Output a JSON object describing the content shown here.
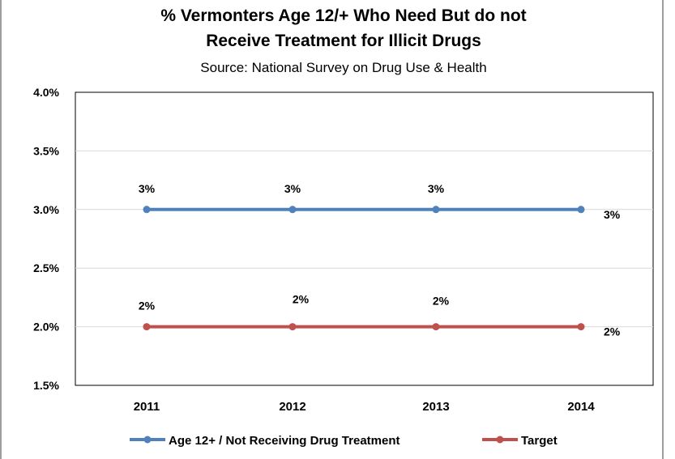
{
  "chart_data": {
    "type": "line",
    "title_line1": "% Vermonters Age 12/+ Who Need But do not",
    "title_line2": "Receive Treatment for Illicit Drugs",
    "subtitle": "Source: National Survey on Drug Use & Health",
    "categories": [
      "2011",
      "2012",
      "2013",
      "2014"
    ],
    "ylim": [
      1.5,
      4.0
    ],
    "yticks": [
      4.0,
      3.5,
      3.0,
      2.5,
      2.0,
      1.5
    ],
    "ytick_labels": [
      "4.0%",
      "3.5%",
      "3.0%",
      "2.5%",
      "2.0%",
      "1.5%"
    ],
    "grid": true,
    "legend_position": "bottom",
    "series": [
      {
        "name": "Age 12+ / Not Receiving Drug Treatment",
        "color": "#4f81bd",
        "values": [
          3.0,
          3.0,
          3.0,
          3.0
        ],
        "labels": [
          "3%",
          "3%",
          "3%",
          "3%"
        ]
      },
      {
        "name": "Target",
        "color": "#c0504d",
        "values": [
          2.0,
          2.0,
          2.0,
          2.0
        ],
        "labels": [
          "2%",
          "2%",
          "2%",
          "2%"
        ]
      }
    ]
  }
}
